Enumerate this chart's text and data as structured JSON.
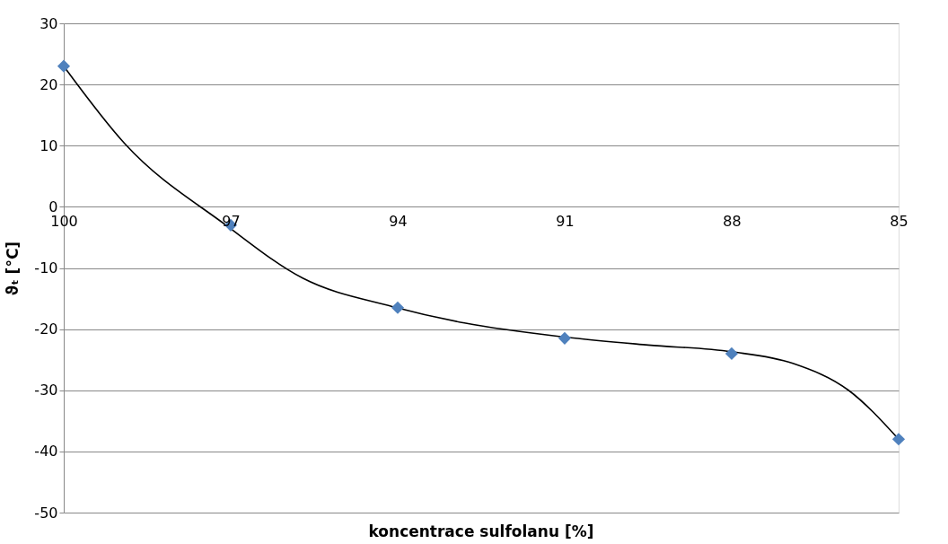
{
  "chart_data": {
    "type": "scatter",
    "xlabel": "koncentrace sulfolanu [%]",
    "ylabel": "ϑₜ [°C]",
    "xlim": [
      100,
      85
    ],
    "xticks": [
      100,
      97,
      94,
      91,
      88,
      85
    ],
    "ylim": [
      -50,
      30
    ],
    "yticks": [
      -50,
      -40,
      -30,
      -20,
      -10,
      0,
      10,
      20,
      30
    ],
    "grid": "y",
    "series": [
      {
        "type": "line",
        "color": "#000000",
        "line_style": "solid",
        "x": [
          100,
          98.9,
          97.1,
          95.7,
          94.1,
          92.8,
          91,
          89.5,
          88,
          86.9,
          85.9,
          85
        ],
        "values": [
          23,
          10.3,
          -2.9,
          -11.7,
          -16.3,
          -19,
          -21.3,
          -22.6,
          -23.7,
          -25.6,
          -30,
          -38
        ]
      },
      {
        "color": "#4f81bd",
        "marker": "diamond",
        "x": [
          100,
          97,
          94,
          91,
          88,
          85
        ],
        "values": [
          23,
          -3,
          -16.5,
          -21.5,
          -24,
          -38
        ]
      }
    ]
  }
}
